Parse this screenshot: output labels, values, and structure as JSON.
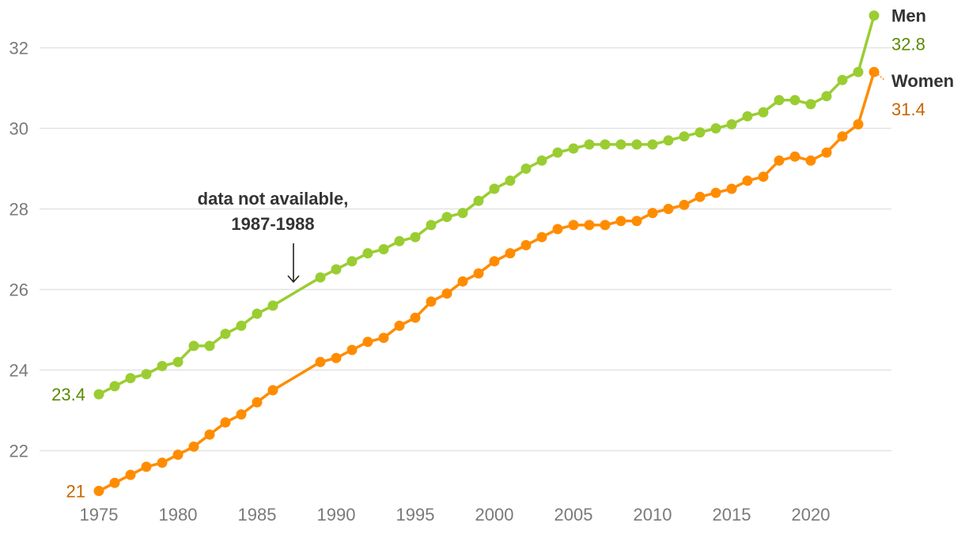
{
  "chart_data": {
    "type": "line",
    "title": "",
    "xlabel": "",
    "ylabel": "",
    "xlim": [
      1975,
      2024
    ],
    "ylim": [
      21,
      32.8
    ],
    "xticks": [
      1975,
      1980,
      1985,
      1990,
      1995,
      2000,
      2005,
      2010,
      2015,
      2020
    ],
    "yticks": [
      22,
      24,
      26,
      28,
      30,
      32
    ],
    "grid": "horizontal",
    "series": [
      {
        "name": "Men",
        "color": "#9ACD32",
        "label_color": "#5A8A00",
        "start_label": "23.4",
        "end_label": "32.8",
        "x": [
          1975,
          1976,
          1977,
          1978,
          1979,
          1980,
          1981,
          1982,
          1983,
          1984,
          1985,
          1986,
          1989,
          1990,
          1991,
          1992,
          1993,
          1994,
          1995,
          1996,
          1997,
          1998,
          1999,
          2000,
          2001,
          2002,
          2003,
          2004,
          2005,
          2006,
          2007,
          2008,
          2009,
          2010,
          2011,
          2012,
          2013,
          2014,
          2015,
          2016,
          2017,
          2018,
          2019,
          2020,
          2021,
          2022,
          2023,
          2024
        ],
        "values": [
          23.4,
          23.6,
          23.8,
          23.9,
          24.1,
          24.2,
          24.6,
          24.6,
          24.9,
          25.1,
          25.4,
          25.6,
          26.3,
          26.5,
          26.7,
          26.9,
          27.0,
          27.2,
          27.3,
          27.6,
          27.8,
          27.9,
          28.2,
          28.5,
          28.7,
          29.0,
          29.2,
          29.4,
          29.5,
          29.6,
          29.6,
          29.6,
          29.6,
          29.6,
          29.7,
          29.8,
          29.9,
          30.0,
          30.1,
          30.3,
          30.4,
          30.7,
          30.7,
          30.6,
          30.8,
          31.2,
          31.4,
          32.8
        ]
      },
      {
        "name": "Women",
        "color": "#FF8C00",
        "label_color": "#C86400",
        "start_label": "21",
        "end_label": "31.4",
        "x": [
          1975,
          1976,
          1977,
          1978,
          1979,
          1980,
          1981,
          1982,
          1983,
          1984,
          1985,
          1986,
          1989,
          1990,
          1991,
          1992,
          1993,
          1994,
          1995,
          1996,
          1997,
          1998,
          1999,
          2000,
          2001,
          2002,
          2003,
          2004,
          2005,
          2006,
          2007,
          2008,
          2009,
          2010,
          2011,
          2012,
          2013,
          2014,
          2015,
          2016,
          2017,
          2018,
          2019,
          2020,
          2021,
          2022,
          2023,
          2024
        ],
        "values": [
          21.0,
          21.2,
          21.4,
          21.6,
          21.7,
          21.9,
          22.1,
          22.4,
          22.7,
          22.9,
          23.2,
          23.5,
          24.2,
          24.3,
          24.5,
          24.7,
          24.8,
          25.1,
          25.3,
          25.7,
          25.9,
          26.2,
          26.4,
          26.7,
          26.9,
          27.1,
          27.3,
          27.5,
          27.6,
          27.6,
          27.6,
          27.7,
          27.7,
          27.9,
          28.0,
          28.1,
          28.3,
          28.4,
          28.5,
          28.7,
          28.8,
          29.2,
          29.3,
          29.2,
          29.4,
          29.8,
          30.1,
          31.4
        ]
      }
    ],
    "annotation": {
      "lines": [
        "data not available,",
        "1987-1988"
      ],
      "target_x": 1987.3
    }
  }
}
